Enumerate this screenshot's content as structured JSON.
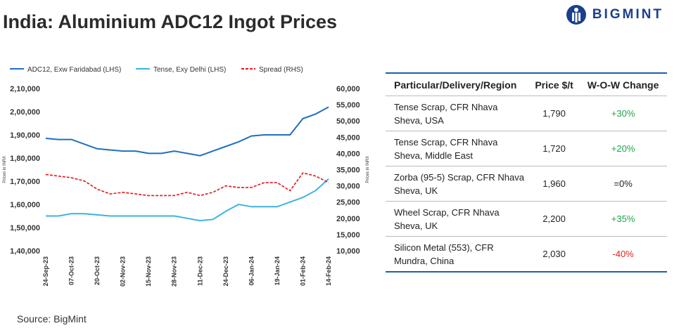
{
  "title": "India: Aluminium ADC12 Ingot Prices",
  "brand": "BIGMINT",
  "chart_data": {
    "type": "line",
    "categories": [
      "24-Sep-23",
      null,
      "07-Oct-23",
      null,
      "20-Oct-23",
      null,
      "02-Nov-23",
      null,
      "15-Nov-23",
      null,
      "28-Nov-23",
      null,
      "11-Dec-23",
      null,
      "24-Dec-23",
      null,
      "06-Jan-24",
      null,
      "19-Jan-24",
      null,
      "01-Feb-24",
      null,
      "14-Feb-24"
    ],
    "y_label": "Prices in INR/t",
    "y2_label": "Prices in INR/t",
    "series": [
      {
        "name": "ADC12, Exw Faridabad (LHS)",
        "color": "#1f6fbf",
        "dash": false,
        "values": [
          188500,
          188000,
          188000,
          186000,
          184000,
          183500,
          183000,
          183000,
          182000,
          182000,
          183000,
          182000,
          181000,
          183000,
          185000,
          187000,
          189500,
          190000,
          190000,
          190000,
          197000,
          199000,
          202000
        ]
      },
      {
        "name": "Tense, Exy Delhi (LHS)",
        "color": "#3bb4e0",
        "dash": false,
        "values": [
          155000,
          155000,
          156000,
          156000,
          155500,
          155000,
          155000,
          155000,
          155000,
          155000,
          155000,
          154000,
          153000,
          153500,
          157000,
          160000,
          159000,
          159000,
          159000,
          161000,
          163000,
          166000,
          171000
        ]
      },
      {
        "name": "Spread (RHS)",
        "color": "#e8141b",
        "dash": true,
        "axis": "y2",
        "values": [
          33500,
          33000,
          32500,
          31500,
          29000,
          27500,
          28000,
          27500,
          27000,
          27000,
          27000,
          28000,
          27000,
          28000,
          30000,
          29500,
          29500,
          31000,
          31000,
          28500,
          34000,
          33000,
          31000
        ]
      }
    ],
    "ylim": [
      140000,
      210000
    ],
    "yticks": [
      {
        "value": 140000,
        "label": "1,40,000"
      },
      {
        "value": 150000,
        "label": "1,50,000"
      },
      {
        "value": 160000,
        "label": "1,60,000"
      },
      {
        "value": 170000,
        "label": "1,70,000"
      },
      {
        "value": 180000,
        "label": "1,80,000"
      },
      {
        "value": 190000,
        "label": "1,90,000"
      },
      {
        "value": 200000,
        "label": "2,00,000"
      },
      {
        "value": 210000,
        "label": "2,10,000"
      }
    ],
    "y2lim": [
      10000,
      60000
    ],
    "y2ticks": [
      {
        "value": 10000,
        "label": "10,000"
      },
      {
        "value": 15000,
        "label": "15,000"
      },
      {
        "value": 20000,
        "label": "20,000"
      },
      {
        "value": 25000,
        "label": "25,000"
      },
      {
        "value": 30000,
        "label": "30,000"
      },
      {
        "value": 35000,
        "label": "35,000"
      },
      {
        "value": 40000,
        "label": "40,000"
      },
      {
        "value": 45000,
        "label": "45,000"
      },
      {
        "value": 50000,
        "label": "50,000"
      },
      {
        "value": 55000,
        "label": "55,000"
      },
      {
        "value": 60000,
        "label": "60,000"
      }
    ],
    "grid": false,
    "legend": "top"
  },
  "table": {
    "header": [
      "Particular/Delivery/Region",
      "Price $/t",
      "W-O-W Change"
    ],
    "rows": [
      [
        "Tense Scrap, CFR Nhava Sheva, USA",
        "1,790",
        "+30%"
      ],
      [
        "Tense Scrap, CFR Nhava Sheva, Middle East",
        "1,720",
        "+20%"
      ],
      [
        "Zorba (95-5) Scrap, CFR Nhava Sheva, UK",
        "1,960",
        "=0%"
      ],
      [
        "Wheel Scrap, CFR Nhava Sheva, UK",
        "2,200",
        "+35%"
      ],
      [
        "Silicon Metal (553), CFR Mundra, China",
        "2,030",
        "-40%"
      ]
    ],
    "change_colors": [
      "#1aa64a",
      "#1aa64a",
      "#222222",
      "#1aa64a",
      "#e0201b"
    ]
  },
  "source": "Source: BigMint"
}
